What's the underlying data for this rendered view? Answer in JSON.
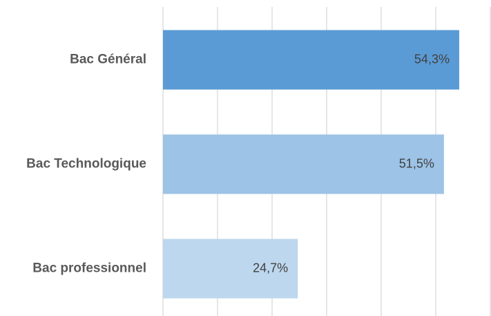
{
  "chart_data": {
    "type": "hbar",
    "categories": [
      "Bac Général",
      "Bac Technologique",
      "Bac professionnel"
    ],
    "values": [
      54.3,
      51.5,
      24.7
    ],
    "value_labels": [
      "54,3%",
      "51,5%",
      "24,7%"
    ],
    "colors": [
      "#5b9bd5",
      "#9dc3e6",
      "#bdd7ee"
    ],
    "xlim": [
      0,
      60
    ],
    "xticks": [
      0,
      10,
      20,
      30,
      40,
      50,
      60
    ],
    "grid": true
  }
}
